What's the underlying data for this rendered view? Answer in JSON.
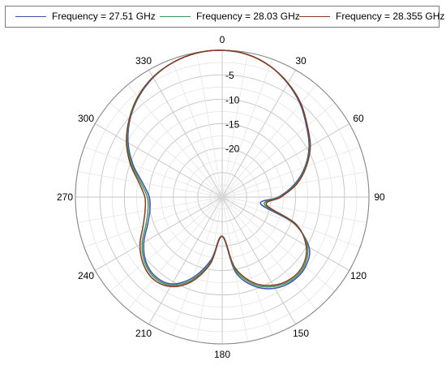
{
  "chart_data": {
    "type": "line",
    "subtype": "polar",
    "title": "",
    "angular_ticks": [
      0,
      30,
      60,
      90,
      120,
      150,
      180,
      210,
      240,
      270,
      300,
      330
    ],
    "radial_ticks": [
      -5,
      -10,
      -15,
      -20
    ],
    "radial_range": [
      -30,
      0
    ],
    "angle_direction": "clockwise",
    "zero_location": "top",
    "grid": true,
    "legend_position": "top",
    "angles": [
      0,
      10,
      20,
      30,
      40,
      50,
      60,
      70,
      80,
      90,
      100,
      110,
      120,
      130,
      140,
      150,
      160,
      170,
      180,
      190,
      200,
      210,
      220,
      230,
      240,
      250,
      260,
      270,
      280,
      290,
      300,
      310,
      320,
      330,
      340,
      350
    ],
    "series": [
      {
        "name": "Frequency = 27.51 GHz",
        "color": "#3f51a8",
        "values": [
          0,
          -0.4,
          -1.5,
          -3.2,
          -5.2,
          -7.5,
          -9.5,
          -12,
          -15,
          -18.5,
          -22,
          -14.5,
          -9.5,
          -7.8,
          -7.6,
          -8.5,
          -10.6,
          -14.5,
          -22,
          -17,
          -12.5,
          -9.5,
          -8.8,
          -9.6,
          -11.5,
          -13.8,
          -15,
          -15.1,
          -13.5,
          -10.6,
          -7.8,
          -5.4,
          -3.4,
          -1.8,
          -0.7,
          -0.1
        ]
      },
      {
        "name": "Frequency = 28.03 GHz",
        "color": "#3e9a5a",
        "values": [
          0,
          -0.4,
          -1.5,
          -3.1,
          -5.0,
          -7.3,
          -9.3,
          -11.8,
          -14.7,
          -18.2,
          -21.2,
          -14.2,
          -9.9,
          -8.1,
          -7.9,
          -8.9,
          -11,
          -15,
          -22,
          -16.5,
          -12,
          -9.2,
          -8.5,
          -9.3,
          -11.1,
          -13.4,
          -14.6,
          -14.7,
          -13.1,
          -10.3,
          -7.6,
          -5.3,
          -3.3,
          -1.7,
          -0.7,
          -0.1
        ]
      },
      {
        "name": "Frequency = 28.355 GHz",
        "color": "#8a3b1f",
        "values": [
          0,
          -0.4,
          -1.5,
          -3.1,
          -5.0,
          -7.3,
          -9.2,
          -11.7,
          -14.5,
          -18,
          -20.8,
          -14,
          -10.2,
          -8.4,
          -8.2,
          -9.2,
          -11.4,
          -15.5,
          -22,
          -16.2,
          -11.6,
          -8.9,
          -8.1,
          -8.9,
          -10.6,
          -12.8,
          -14.0,
          -14.2,
          -12.7,
          -10,
          -7.4,
          -5.2,
          -3.2,
          -1.7,
          -0.7,
          -0.1
        ]
      }
    ]
  }
}
